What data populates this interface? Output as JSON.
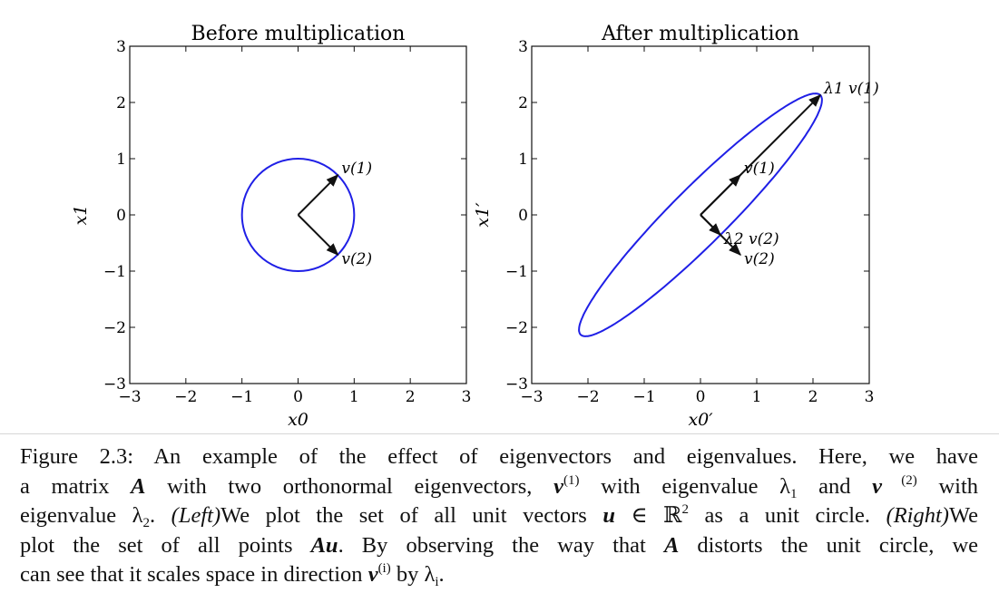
{
  "chart_data": [
    {
      "type": "line",
      "title": "Before multiplication",
      "xlabel": "x0",
      "ylabel": "x1",
      "xlim": [
        -3,
        3
      ],
      "ylim": [
        -3,
        3
      ],
      "xticks": [
        "−3",
        "−2",
        "−1",
        "0",
        "1",
        "2",
        "3"
      ],
      "yticks": [
        "3",
        "2",
        "1",
        "0",
        "−1",
        "−2",
        "−3"
      ],
      "grid": false,
      "series": [
        {
          "name": "",
          "shape": "unit circle",
          "center": [
            0,
            0
          ],
          "radius": 1,
          "color": "#1f1fe6"
        }
      ],
      "vectors": [
        {
          "label": "v(1)",
          "from": [
            0,
            0
          ],
          "to": [
            0.71,
            0.71
          ]
        },
        {
          "label": "v(2)",
          "from": [
            0,
            0
          ],
          "to": [
            0.71,
            -0.71
          ]
        }
      ]
    },
    {
      "type": "line",
      "title": "After multiplication",
      "xlabel": "x0′",
      "ylabel": "x1′",
      "xlim": [
        -3,
        3
      ],
      "ylim": [
        -3,
        3
      ],
      "xticks": [
        "−3",
        "−2",
        "−1",
        "0",
        "1",
        "2",
        "3"
      ],
      "yticks": [
        "3",
        "2",
        "1",
        "0",
        "−1",
        "−2",
        "−3"
      ],
      "grid": false,
      "series": [
        {
          "name": "",
          "shape": "ellipse",
          "center": [
            0,
            0
          ],
          "semi_axes": [
            3.0,
            0.5
          ],
          "major_direction": [
            0.71,
            0.71
          ],
          "color": "#1f1fe6"
        }
      ],
      "vectors": [
        {
          "label": "v(1)",
          "from": [
            0,
            0
          ],
          "to": [
            0.71,
            0.71
          ]
        },
        {
          "label": "λ1 v(1)",
          "from": [
            0,
            0
          ],
          "to": [
            2.13,
            2.13
          ]
        },
        {
          "label": "v(2)",
          "from": [
            0,
            0
          ],
          "to": [
            0.71,
            -0.71
          ]
        },
        {
          "label": "λ2 v(2)",
          "from": [
            0,
            0
          ],
          "to": [
            0.355,
            -0.355
          ]
        }
      ]
    }
  ],
  "caption": {
    "lines": [
      [
        "Figure 2.3: An example of the effect of eigenvectors and eigenvalues. Here, we have"
      ],
      [
        "a matrix ",
        {
          "b": "A"
        },
        " with two orthonormal eigenvectors, ",
        {
          "b": "v"
        },
        {
          "sup": "(1)"
        },
        " with eigenvalue λ",
        {
          "sub": "1"
        },
        " and ",
        {
          "b": "v"
        },
        {
          "sup": " (2)"
        },
        " with"
      ],
      [
        "eigenvalue λ",
        {
          "sub": "2"
        },
        ". ",
        {
          "i": "(Left)"
        },
        "We plot the set of all unit vectors ",
        {
          "b": "u"
        },
        " ∈ ℝ",
        {
          "sup": "2"
        },
        " as a unit circle. ",
        {
          "i": "(Right)"
        },
        "We"
      ],
      [
        "plot the set of all points ",
        {
          "b": "Au"
        },
        ". By observing the way that ",
        {
          "b": "A"
        },
        " distorts the unit circle, we"
      ],
      [
        "can see that it scales space in direction ",
        {
          "b": "v"
        },
        {
          "sup": "(i)"
        },
        " by λ",
        {
          "sub": "i"
        },
        "."
      ]
    ]
  }
}
